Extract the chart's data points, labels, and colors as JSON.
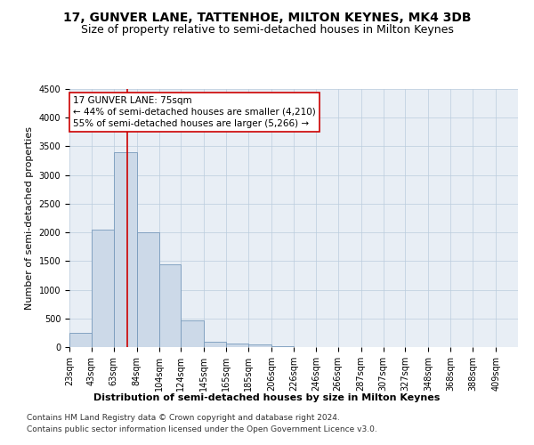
{
  "title": "17, GUNVER LANE, TATTENHOE, MILTON KEYNES, MK4 3DB",
  "subtitle": "Size of property relative to semi-detached houses in Milton Keynes",
  "xlabel": "Distribution of semi-detached houses by size in Milton Keynes",
  "ylabel": "Number of semi-detached properties",
  "footnote1": "Contains HM Land Registry data © Crown copyright and database right 2024.",
  "footnote2": "Contains public sector information licensed under the Open Government Licence v3.0.",
  "bar_color": "#ccd9e8",
  "bar_edge_color": "#7799bb",
  "annotation_box_color": "#ffffff",
  "annotation_box_edge": "#cc0000",
  "vline_color": "#cc0000",
  "property_sqm": 75,
  "pct_smaller": 44,
  "count_smaller": 4210,
  "pct_larger": 55,
  "count_larger": 5266,
  "bin_edges": [
    23,
    43,
    63,
    84,
    104,
    124,
    145,
    165,
    185,
    206,
    226,
    246,
    266,
    287,
    307,
    327,
    348,
    368,
    388,
    409,
    429
  ],
  "bin_heights": [
    250,
    2050,
    3400,
    2000,
    1450,
    470,
    100,
    60,
    50,
    10,
    5,
    3,
    2,
    1,
    1,
    1,
    0,
    0,
    0,
    0
  ],
  "ylim": [
    0,
    4500
  ],
  "yticks": [
    0,
    500,
    1000,
    1500,
    2000,
    2500,
    3000,
    3500,
    4000,
    4500
  ],
  "background_color": "#e8eef5",
  "title_fontsize": 10,
  "subtitle_fontsize": 9,
  "axis_label_fontsize": 8,
  "tick_fontsize": 7,
  "annotation_fontsize": 7.5,
  "footnote_fontsize": 6.5
}
